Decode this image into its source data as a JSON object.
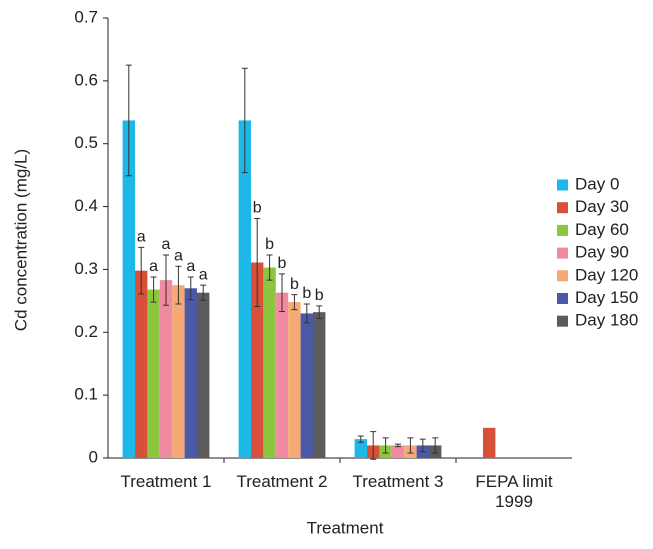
{
  "chart_data": {
    "type": "bar",
    "y_label": "Cd concentration (mg/L)",
    "x_label": "Treatment",
    "categories": [
      "Treatment 1",
      "Treatment 2",
      "Treatment 3",
      "FEPA limit 1999"
    ],
    "ylim": [
      0,
      0.7
    ],
    "yticks": [
      0,
      0.1,
      0.2,
      0.3,
      0.4,
      0.5,
      0.6,
      0.7
    ],
    "legend": "right",
    "series": [
      {
        "name": "Day 0",
        "color": "#1cb8e8",
        "values": [
          0.537,
          0.537,
          0.03,
          null
        ],
        "errors": [
          0.088,
          0.083,
          0.005,
          null
        ],
        "annotations": [
          null,
          null,
          null,
          null
        ]
      },
      {
        "name": "Day 30",
        "color": "#d9503a",
        "values": [
          0.298,
          0.311,
          0.02,
          0.048
        ],
        "errors": [
          0.037,
          0.07,
          0.022,
          null
        ],
        "annotations": [
          "a",
          "b",
          null,
          null
        ]
      },
      {
        "name": "Day 60",
        "color": "#8cc63f",
        "values": [
          0.268,
          0.303,
          0.02,
          null
        ],
        "errors": [
          0.02,
          0.02,
          0.012,
          null
        ],
        "annotations": [
          "a",
          "b",
          null,
          null
        ]
      },
      {
        "name": "Day 90",
        "color": "#f08aa0",
        "values": [
          0.283,
          0.263,
          0.02,
          null
        ],
        "errors": [
          0.04,
          0.03,
          0.002,
          null
        ],
        "annotations": [
          "a",
          "b",
          null,
          null
        ]
      },
      {
        "name": "Day 120",
        "color": "#f6a974",
        "values": [
          0.275,
          0.248,
          0.02,
          null
        ],
        "errors": [
          0.03,
          0.012,
          0.012,
          null
        ],
        "annotations": [
          "a",
          "b",
          null,
          null
        ]
      },
      {
        "name": "Day 150",
        "color": "#4b5aa6",
        "values": [
          0.27,
          0.23,
          0.02,
          null
        ],
        "errors": [
          0.018,
          0.015,
          0.01,
          null
        ],
        "annotations": [
          "a",
          "b",
          null,
          null
        ]
      },
      {
        "name": "Day 180",
        "color": "#5b5b5b",
        "values": [
          0.263,
          0.232,
          0.02,
          null
        ],
        "errors": [
          0.012,
          0.01,
          0.012,
          null
        ],
        "annotations": [
          "a",
          "b",
          null,
          null
        ]
      }
    ]
  }
}
